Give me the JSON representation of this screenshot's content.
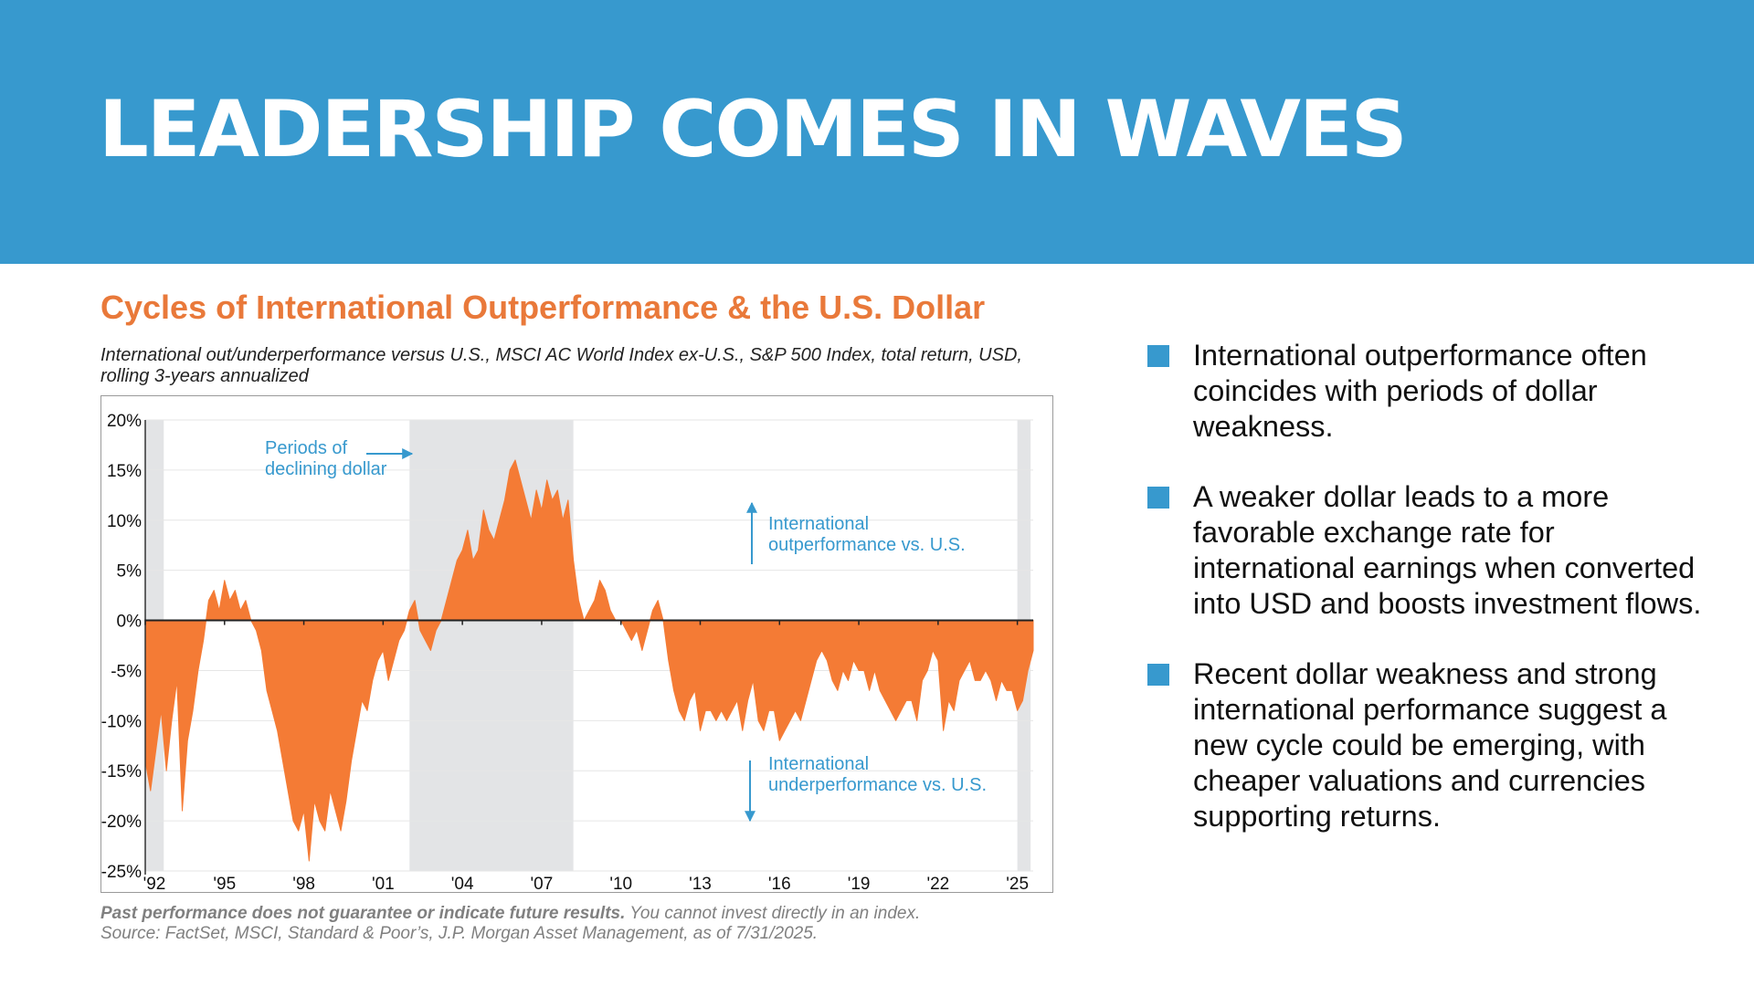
{
  "slide": {
    "title": "LEADERSHIP COMES IN WAVES",
    "header_color": "#3799ce"
  },
  "chart_data": {
    "type": "area",
    "title": "Cycles of International Outperformance & the U.S. Dollar",
    "subtitle": "International out/underperformance versus U.S., MSCI AC World Index ex-U.S., S&P 500 Index, total return, USD, rolling 3-years annualized",
    "y_ticks": [
      "20%",
      "15%",
      "10%",
      "5%",
      "0%",
      "-5%",
      "-10%",
      "-15%",
      "-20%",
      "-25%"
    ],
    "x_ticks": [
      "'92",
      "'95",
      "'98",
      "'01",
      "'04",
      "'07",
      "'10",
      "'13",
      "'16",
      "'19",
      "'22",
      "'25"
    ],
    "ylim": [
      -25,
      20
    ],
    "xlim": [
      1992.0,
      2025.6
    ],
    "grid": "horizontal",
    "fill_color": "#f47b35",
    "shade_color": "#e3e4e6",
    "shaded_periods": [
      [
        1992.0,
        1992.7
      ],
      [
        2002.0,
        2008.2
      ],
      [
        2025.0,
        2025.5
      ]
    ],
    "annotations": {
      "declining_dollar": [
        "Periods of",
        "declining dollar"
      ],
      "outperformance": [
        "International",
        "outperformance vs. U.S."
      ],
      "underperformance": [
        "International",
        "underperformance vs. U.S."
      ]
    },
    "series": [
      {
        "x": [
          1992.0,
          1992.2,
          1992.4,
          1992.6,
          1992.8,
          1993.0,
          1993.2,
          1993.4,
          1993.6,
          1993.8,
          1994.0,
          1994.2,
          1994.4,
          1994.6,
          1994.8,
          1995.0,
          1995.2,
          1995.4,
          1995.6,
          1995.8,
          1996.0,
          1996.2,
          1996.4,
          1996.6,
          1996.8,
          1997.0,
          1997.2,
          1997.4,
          1997.6,
          1997.8,
          1998.0,
          1998.2,
          1998.4,
          1998.6,
          1998.8,
          1999.0,
          1999.2,
          1999.4,
          1999.6,
          1999.8,
          2000.0,
          2000.2,
          2000.4,
          2000.6,
          2000.8,
          2001.0,
          2001.2,
          2001.4,
          2001.6,
          2001.8,
          2002.0,
          2002.2,
          2002.4,
          2002.6,
          2002.8,
          2003.0,
          2003.2,
          2003.4,
          2003.6,
          2003.8,
          2004.0,
          2004.2,
          2004.4,
          2004.6,
          2004.8,
          2005.0,
          2005.2,
          2005.4,
          2005.6,
          2005.8,
          2006.0,
          2006.2,
          2006.4,
          2006.6,
          2006.8,
          2007.0,
          2007.2,
          2007.4,
          2007.6,
          2007.8,
          2008.0,
          2008.2,
          2008.4,
          2008.6,
          2008.8,
          2009.0,
          2009.2,
          2009.4,
          2009.6,
          2009.8,
          2010.0,
          2010.2,
          2010.4,
          2010.6,
          2010.8,
          2011.0,
          2011.2,
          2011.4,
          2011.6,
          2011.8,
          2012.0,
          2012.2,
          2012.4,
          2012.6,
          2012.8,
          2013.0,
          2013.2,
          2013.4,
          2013.6,
          2013.8,
          2014.0,
          2014.2,
          2014.4,
          2014.6,
          2014.8,
          2015.0,
          2015.2,
          2015.4,
          2015.6,
          2015.8,
          2016.0,
          2016.2,
          2016.4,
          2016.6,
          2016.8,
          2017.0,
          2017.2,
          2017.4,
          2017.6,
          2017.8,
          2018.0,
          2018.2,
          2018.4,
          2018.6,
          2018.8,
          2019.0,
          2019.2,
          2019.4,
          2019.6,
          2019.8,
          2020.0,
          2020.2,
          2020.4,
          2020.6,
          2020.8,
          2021.0,
          2021.2,
          2021.4,
          2021.6,
          2021.8,
          2022.0,
          2022.2,
          2022.4,
          2022.6,
          2022.8,
          2023.0,
          2023.2,
          2023.4,
          2023.6,
          2023.8,
          2024.0,
          2024.2,
          2024.4,
          2024.6,
          2024.8,
          2025.0,
          2025.2,
          2025.4,
          2025.6
        ],
        "values": [
          -14,
          -17,
          -13,
          -9,
          -15,
          -10,
          -6,
          -19,
          -12,
          -9,
          -5,
          -2,
          2,
          3,
          1,
          4,
          2,
          3,
          1,
          2,
          0,
          -1,
          -3,
          -7,
          -9,
          -11,
          -14,
          -17,
          -20,
          -21,
          -19,
          -24,
          -18,
          -20,
          -21,
          -17,
          -19,
          -21,
          -18,
          -14,
          -11,
          -8,
          -9,
          -6,
          -4,
          -3,
          -6,
          -4,
          -2,
          -1,
          1,
          2,
          -1,
          -2,
          -3,
          -1,
          0,
          2,
          4,
          6,
          7,
          9,
          6,
          7,
          11,
          9,
          8,
          10,
          12,
          15,
          16,
          14,
          12,
          10,
          13,
          11,
          14,
          12,
          13,
          10,
          12,
          6,
          2,
          0,
          1,
          2,
          4,
          3,
          1,
          0,
          0,
          -1,
          -2,
          -1,
          -3,
          -1,
          1,
          2,
          0,
          -4,
          -7,
          -9,
          -10,
          -8,
          -7,
          -11,
          -9,
          -9,
          -10,
          -9,
          -10,
          -9,
          -8,
          -11,
          -8,
          -6,
          -10,
          -11,
          -9,
          -9,
          -12,
          -11,
          -10,
          -9,
          -10,
          -8,
          -6,
          -4,
          -3,
          -4,
          -6,
          -7,
          -5,
          -6,
          -4,
          -5,
          -5,
          -7,
          -5,
          -7,
          -8,
          -9,
          -10,
          -9,
          -8,
          -8,
          -10,
          -6,
          -5,
          -3,
          -4,
          -11,
          -8,
          -9,
          -6,
          -5,
          -4,
          -6,
          -6,
          -5,
          -6,
          -8,
          -6,
          -7,
          -7,
          -9,
          -8,
          -5,
          -3
        ]
      }
    ]
  },
  "bullets": [
    "International outperformance often coincides with periods of dollar weakness.",
    "A weaker dollar leads to a more favorable exchange rate for international earnings when converted into USD and boosts investment flows.",
    "Recent dollar weakness and strong international performance suggest a new cycle could be emerging, with cheaper valuations and currencies supporting returns."
  ],
  "footnote": {
    "bold": "Past performance does not guarantee or indicate future results.",
    "rest": " You cannot invest directly in an index.",
    "source": "Source: FactSet, MSCI, Standard & Poor’s, J.P. Morgan Asset Management, as of  7/31/2025."
  }
}
